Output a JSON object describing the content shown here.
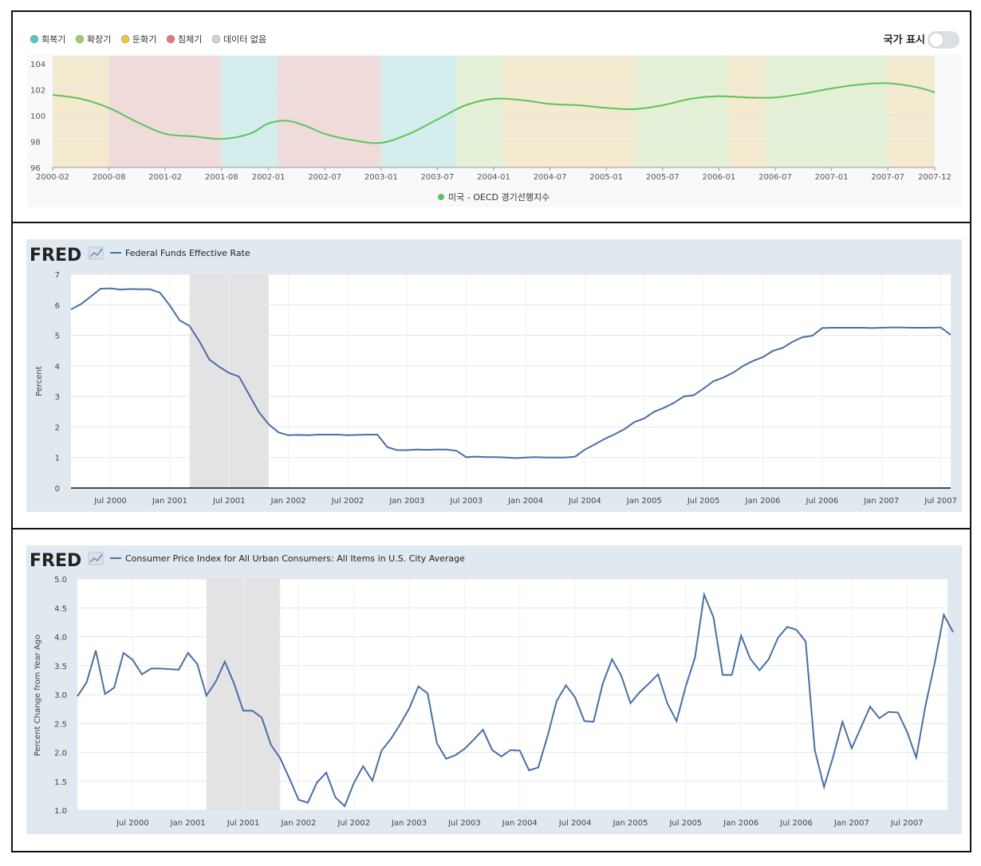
{
  "chart_data": [
    {
      "type": "line",
      "legend_phases": [
        {
          "label": "회복기",
          "color": "#58c6bf"
        },
        {
          "label": "확장기",
          "color": "#9bd35a"
        },
        {
          "label": "둔화기",
          "color": "#f2c14e"
        },
        {
          "label": "침체기",
          "color": "#e07b7b"
        },
        {
          "label": "데이터 없음",
          "color": "#cfd3d8"
        }
      ],
      "toggle_label": "국가 표시",
      "toggle_on": false,
      "series": [
        {
          "name": "미국 - OECD 경기선행지수",
          "color": "#5cc45c",
          "x": [
            "2000-02",
            "2000-05",
            "2000-08",
            "2000-11",
            "2001-02",
            "2001-05",
            "2001-08",
            "2001-11",
            "2002-01",
            "2002-03",
            "2002-05",
            "2002-07",
            "2002-10",
            "2003-01",
            "2003-04",
            "2003-07",
            "2003-10",
            "2004-01",
            "2004-04",
            "2004-07",
            "2004-10",
            "2005-01",
            "2005-04",
            "2005-07",
            "2005-10",
            "2006-01",
            "2006-04",
            "2006-07",
            "2006-10",
            "2007-01",
            "2007-04",
            "2007-07",
            "2007-10",
            "2007-12"
          ],
          "values": [
            101.6,
            101.3,
            100.6,
            99.5,
            98.6,
            98.4,
            98.2,
            98.6,
            99.4,
            99.6,
            99.2,
            98.6,
            98.1,
            97.9,
            98.6,
            99.7,
            100.8,
            101.3,
            101.2,
            100.9,
            100.8,
            100.6,
            100.5,
            100.8,
            101.3,
            101.5,
            101.4,
            101.4,
            101.7,
            102.1,
            102.4,
            102.5,
            102.2,
            101.8
          ]
        }
      ],
      "phase_bands": [
        {
          "start": "2000-02",
          "end": "2000-08",
          "phase": "둔화기"
        },
        {
          "start": "2000-08",
          "end": "2001-08",
          "phase": "침체기"
        },
        {
          "start": "2001-08",
          "end": "2002-02",
          "phase": "회복기"
        },
        {
          "start": "2002-02",
          "end": "2003-01",
          "phase": "침체기"
        },
        {
          "start": "2003-01",
          "end": "2003-09",
          "phase": "회복기"
        },
        {
          "start": "2003-09",
          "end": "2004-02",
          "phase": "확장기"
        },
        {
          "start": "2004-02",
          "end": "2005-04",
          "phase": "둔화기"
        },
        {
          "start": "2005-04",
          "end": "2006-02",
          "phase": "확장기"
        },
        {
          "start": "2006-02",
          "end": "2006-06",
          "phase": "둔화기"
        },
        {
          "start": "2006-06",
          "end": "2007-07",
          "phase": "확장기"
        },
        {
          "start": "2007-07",
          "end": "2007-12",
          "phase": "둔화기"
        }
      ],
      "x_ticks": [
        "2000-02",
        "2000-08",
        "2001-02",
        "2001-08",
        "2002-01",
        "2002-07",
        "2003-01",
        "2003-07",
        "2004-01",
        "2004-07",
        "2005-01",
        "2005-07",
        "2006-01",
        "2006-07",
        "2007-01",
        "2007-07",
        "2007-12"
      ],
      "y_ticks": [
        "96",
        "98",
        "100",
        "102",
        "104"
      ],
      "ylim": [
        96,
        104
      ]
    },
    {
      "type": "line",
      "brand": "FRED",
      "series": [
        {
          "name": "Federal Funds Effective Rate",
          "color": "#4a6fa5",
          "x": [
            "2000-03",
            "2000-04",
            "2000-05",
            "2000-06",
            "2000-07",
            "2000-08",
            "2000-09",
            "2000-10",
            "2000-11",
            "2000-12",
            "2001-01",
            "2001-02",
            "2001-03",
            "2001-04",
            "2001-05",
            "2001-06",
            "2001-07",
            "2001-08",
            "2001-09",
            "2001-10",
            "2001-11",
            "2001-12",
            "2002-01",
            "2002-02",
            "2002-03",
            "2002-04",
            "2002-05",
            "2002-06",
            "2002-07",
            "2002-08",
            "2002-09",
            "2002-10",
            "2002-11",
            "2002-12",
            "2003-01",
            "2003-02",
            "2003-03",
            "2003-04",
            "2003-05",
            "2003-06",
            "2003-07",
            "2003-08",
            "2003-09",
            "2003-10",
            "2003-11",
            "2003-12",
            "2004-01",
            "2004-02",
            "2004-03",
            "2004-04",
            "2004-05",
            "2004-06",
            "2004-07",
            "2004-08",
            "2004-09",
            "2004-10",
            "2004-11",
            "2004-12",
            "2005-01",
            "2005-02",
            "2005-03",
            "2005-04",
            "2005-05",
            "2005-06",
            "2005-07",
            "2005-08",
            "2005-09",
            "2005-10",
            "2005-11",
            "2005-12",
            "2006-01",
            "2006-02",
            "2006-03",
            "2006-04",
            "2006-05",
            "2006-06",
            "2006-07",
            "2006-08",
            "2006-09",
            "2006-10",
            "2006-11",
            "2006-12",
            "2007-01",
            "2007-02",
            "2007-03",
            "2007-04",
            "2007-05",
            "2007-06",
            "2007-07",
            "2007-08"
          ],
          "values": [
            5.85,
            6.02,
            6.27,
            6.53,
            6.54,
            6.5,
            6.52,
            6.51,
            6.51,
            6.4,
            5.98,
            5.49,
            5.31,
            4.8,
            4.21,
            3.97,
            3.77,
            3.65,
            3.07,
            2.49,
            2.09,
            1.82,
            1.73,
            1.74,
            1.73,
            1.75,
            1.75,
            1.75,
            1.73,
            1.74,
            1.75,
            1.75,
            1.34,
            1.24,
            1.24,
            1.26,
            1.25,
            1.26,
            1.26,
            1.22,
            1.01,
            1.03,
            1.01,
            1.01,
            1.0,
            0.98,
            1.0,
            1.01,
            1.0,
            1.0,
            1.0,
            1.03,
            1.26,
            1.43,
            1.61,
            1.76,
            1.93,
            2.16,
            2.28,
            2.5,
            2.63,
            2.79,
            3.0,
            3.04,
            3.26,
            3.5,
            3.62,
            3.78,
            4.0,
            4.16,
            4.29,
            4.49,
            4.59,
            4.79,
            4.94,
            4.99,
            5.24,
            5.25,
            5.25,
            5.25,
            5.25,
            5.24,
            5.25,
            5.26,
            5.26,
            5.25,
            5.25,
            5.25,
            5.26,
            5.02
          ]
        }
      ],
      "recession": {
        "start": "2001-03",
        "end": "2001-11"
      },
      "ylabel": "Percent",
      "y_ticks": [
        "0",
        "1",
        "2",
        "3",
        "4",
        "5",
        "6",
        "7"
      ],
      "ylim": [
        0,
        7
      ],
      "x_ticks": [
        "Jul 2000",
        "Jan 2001",
        "Jul 2001",
        "Jan 2002",
        "Jul 2002",
        "Jan 2003",
        "Jul 2003",
        "Jan 2004",
        "Jul 2004",
        "Jan 2005",
        "Jul 2005",
        "Jan 2006",
        "Jul 2006",
        "Jan 2007",
        "Jul 2007"
      ]
    },
    {
      "type": "line",
      "brand": "FRED",
      "series": [
        {
          "name": "Consumer Price Index for All Urban Consumers: All Items in U.S. City Average",
          "color": "#4a6fa5",
          "x": [
            "2000-01",
            "2000-02",
            "2000-03",
            "2000-04",
            "2000-05",
            "2000-06",
            "2000-07",
            "2000-08",
            "2000-09",
            "2000-10",
            "2000-11",
            "2000-12",
            "2001-01",
            "2001-02",
            "2001-03",
            "2001-04",
            "2001-05",
            "2001-06",
            "2001-07",
            "2001-08",
            "2001-09",
            "2001-10",
            "2001-11",
            "2001-12",
            "2002-01",
            "2002-02",
            "2002-03",
            "2002-04",
            "2002-05",
            "2002-06",
            "2002-07",
            "2002-08",
            "2002-09",
            "2002-10",
            "2002-11",
            "2002-12",
            "2003-01",
            "2003-02",
            "2003-03",
            "2003-04",
            "2003-05",
            "2003-06",
            "2003-07",
            "2003-08",
            "2003-09",
            "2003-10",
            "2003-11",
            "2003-12",
            "2004-01",
            "2004-02",
            "2004-03",
            "2004-04",
            "2004-05",
            "2004-06",
            "2004-07",
            "2004-08",
            "2004-09",
            "2004-10",
            "2004-11",
            "2004-12",
            "2005-01",
            "2005-02",
            "2005-03",
            "2005-04",
            "2005-05",
            "2005-06",
            "2005-07",
            "2005-08",
            "2005-09",
            "2005-10",
            "2005-11",
            "2005-12",
            "2006-01",
            "2006-02",
            "2006-03",
            "2006-04",
            "2006-05",
            "2006-06",
            "2006-07",
            "2006-08",
            "2006-09",
            "2006-10",
            "2006-11",
            "2006-12",
            "2007-01",
            "2007-02",
            "2007-03",
            "2007-04",
            "2007-05",
            "2007-06",
            "2007-07",
            "2007-08",
            "2007-09",
            "2007-10",
            "2007-11",
            "2007-12"
          ],
          "values": [
            2.97,
            3.21,
            3.76,
            3.01,
            3.12,
            3.72,
            3.6,
            3.35,
            3.45,
            3.45,
            3.44,
            3.43,
            3.72,
            3.53,
            2.98,
            3.22,
            3.57,
            3.19,
            2.72,
            2.72,
            2.6,
            2.13,
            1.9,
            1.55,
            1.18,
            1.13,
            1.48,
            1.65,
            1.22,
            1.07,
            1.47,
            1.76,
            1.51,
            2.03,
            2.23,
            2.48,
            2.76,
            3.14,
            3.02,
            2.16,
            1.89,
            1.95,
            2.06,
            2.22,
            2.39,
            2.04,
            1.93,
            2.04,
            2.03,
            1.69,
            1.74,
            2.28,
            2.89,
            3.16,
            2.95,
            2.54,
            2.53,
            3.19,
            3.61,
            3.33,
            2.85,
            3.04,
            3.19,
            3.35,
            2.85,
            2.54,
            3.14,
            3.64,
            4.73,
            4.34,
            3.34,
            3.34,
            4.02,
            3.62,
            3.42,
            3.61,
            3.98,
            4.17,
            4.12,
            3.92,
            2.04,
            1.4,
            1.93,
            2.53,
            2.07,
            2.43,
            2.79,
            2.59,
            2.7,
            2.69,
            2.36,
            1.91,
            2.8,
            3.54,
            4.38,
            4.08
          ]
        }
      ],
      "recession": {
        "start": "2001-03",
        "end": "2001-11"
      },
      "ylabel": "Percent Change from Year Ago",
      "y_ticks": [
        "1.0",
        "1.5",
        "2.0",
        "2.5",
        "3.0",
        "3.5",
        "4.0",
        "4.5",
        "5.0"
      ],
      "ylim": [
        1.0,
        5.0
      ],
      "x_ticks": [
        "Jul 2000",
        "Jan 2001",
        "Jul 2001",
        "Jan 2002",
        "Jul 2002",
        "Jan 2003",
        "Jul 2003",
        "Jan 2004",
        "Jul 2004",
        "Jan 2005",
        "Jul 2005",
        "Jan 2006",
        "Jul 2006",
        "Jan 2007",
        "Jul 2007"
      ]
    }
  ]
}
